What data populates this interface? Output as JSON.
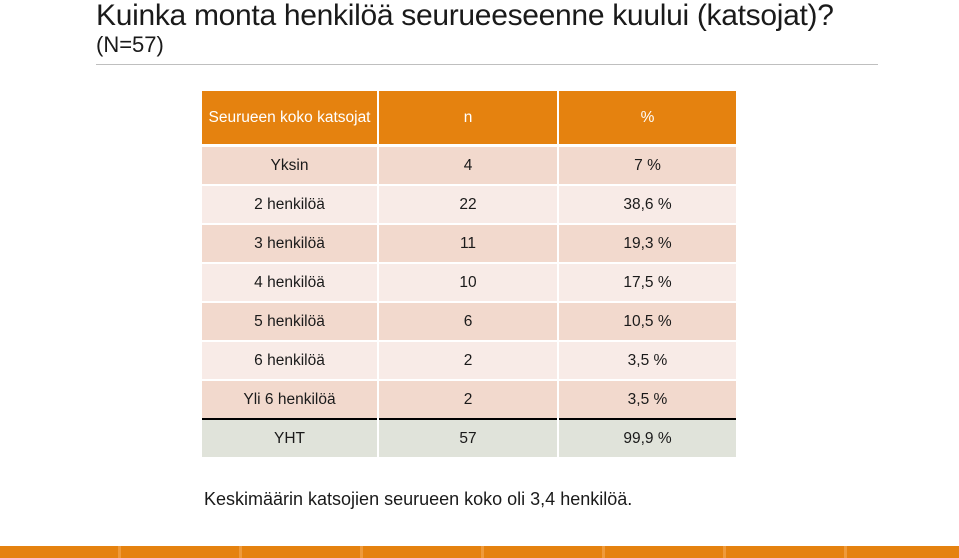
{
  "title": "Kuinka monta henkilöä seurueeseenne kuului (katsojat)?",
  "subtitle": "(N=57)",
  "table": {
    "headers": [
      "Seurueen koko katsojat",
      "n",
      "%"
    ],
    "rows": [
      {
        "label": "Yksin",
        "n": "4",
        "pct": "7 %"
      },
      {
        "label": "2 henkilöä",
        "n": "22",
        "pct": "38,6 %"
      },
      {
        "label": "3 henkilöä",
        "n": "11",
        "pct": "19,3 %"
      },
      {
        "label": "4 henkilöä",
        "n": "10",
        "pct": "17,5 %"
      },
      {
        "label": "5 henkilöä",
        "n": "6",
        "pct": "10,5 %"
      },
      {
        "label": "6 henkilöä",
        "n": "2",
        "pct": "3,5 %"
      },
      {
        "label": "Yli 6 henkilöä",
        "n": "2",
        "pct": "3,5 %"
      }
    ],
    "total": {
      "label": "YHT",
      "n": "57",
      "pct": "99,9 %"
    }
  },
  "note": "Keskimäärin katsojien seurueen koko oli 3,4 henkilöä.",
  "colors": {
    "header": "#e5820f",
    "row_dark": "#f2d9cd",
    "row_light": "#f8ebe7",
    "total_row": "#e0e3da"
  }
}
